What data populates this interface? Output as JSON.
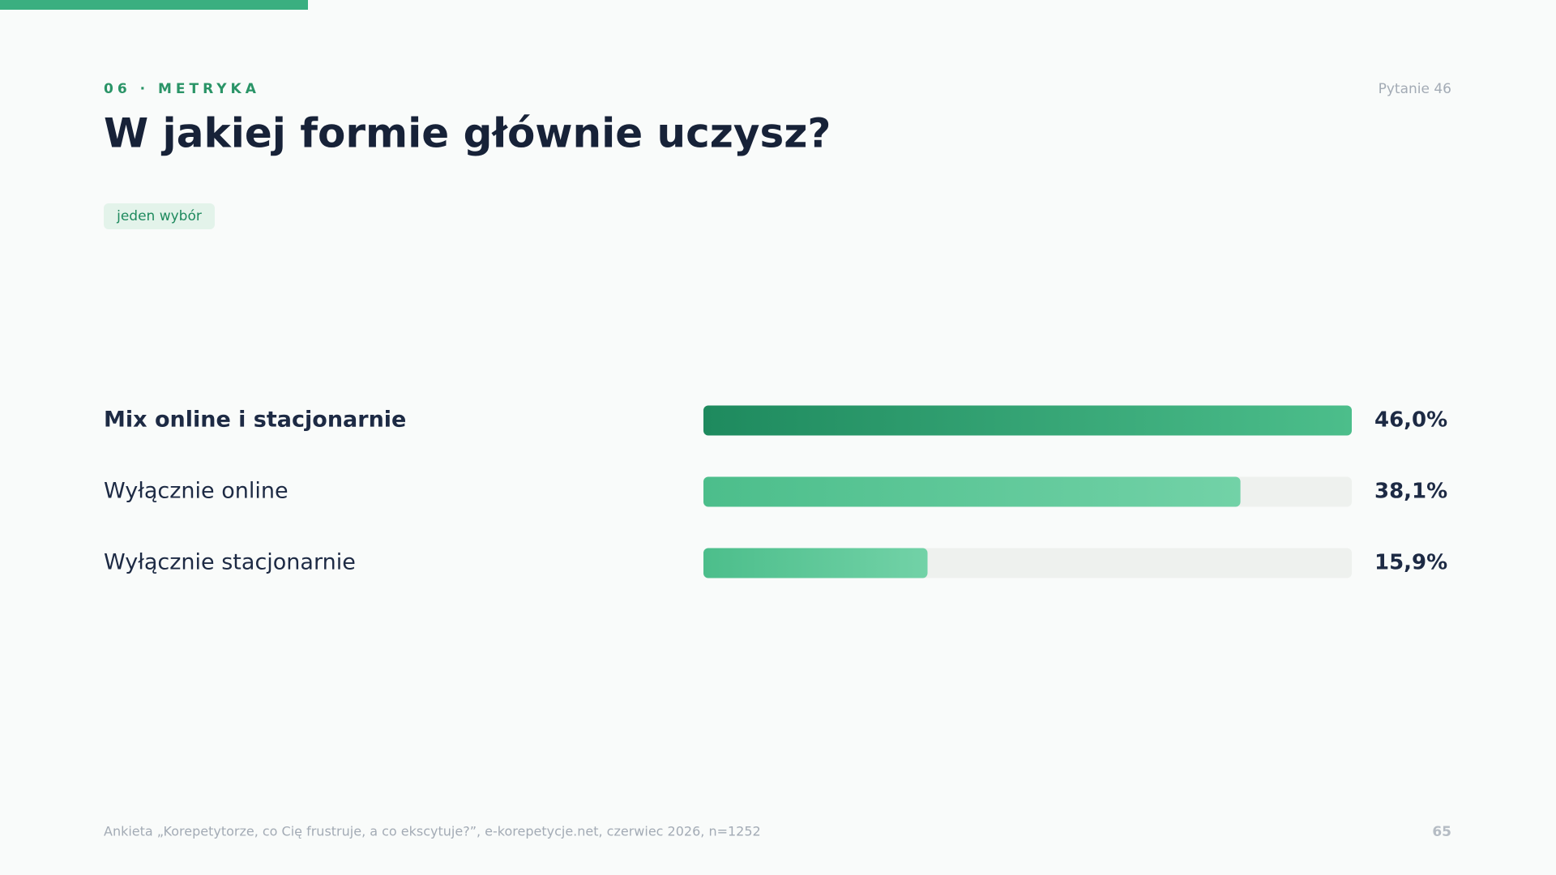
{
  "header": {
    "kicker": "06 · METRYKA",
    "question_no": "Pytanie 46"
  },
  "chart_data": {
    "type": "bar",
    "orientation": "horizontal",
    "title": "W jakiej formie głównie uczysz?",
    "badge": "jeden wybór",
    "categories": [
      "Mix online i stacjonarnie",
      "Wyłącznie online",
      "Wyłącznie stacjonarnie"
    ],
    "values": [
      46.0,
      38.1,
      15.9
    ],
    "value_labels": [
      "46,0%",
      "38,1%",
      "15,9%"
    ],
    "colors": [
      "#1e8a5e",
      "#4cbe8b",
      "#72d2a7"
    ]
  },
  "footer": {
    "source": "Ankieta „Korepetytorze, co Cię frustruje, a co ekscytuje?”, e-korepetycje.net, czerwiec 2026, n=1252",
    "page": "65"
  }
}
